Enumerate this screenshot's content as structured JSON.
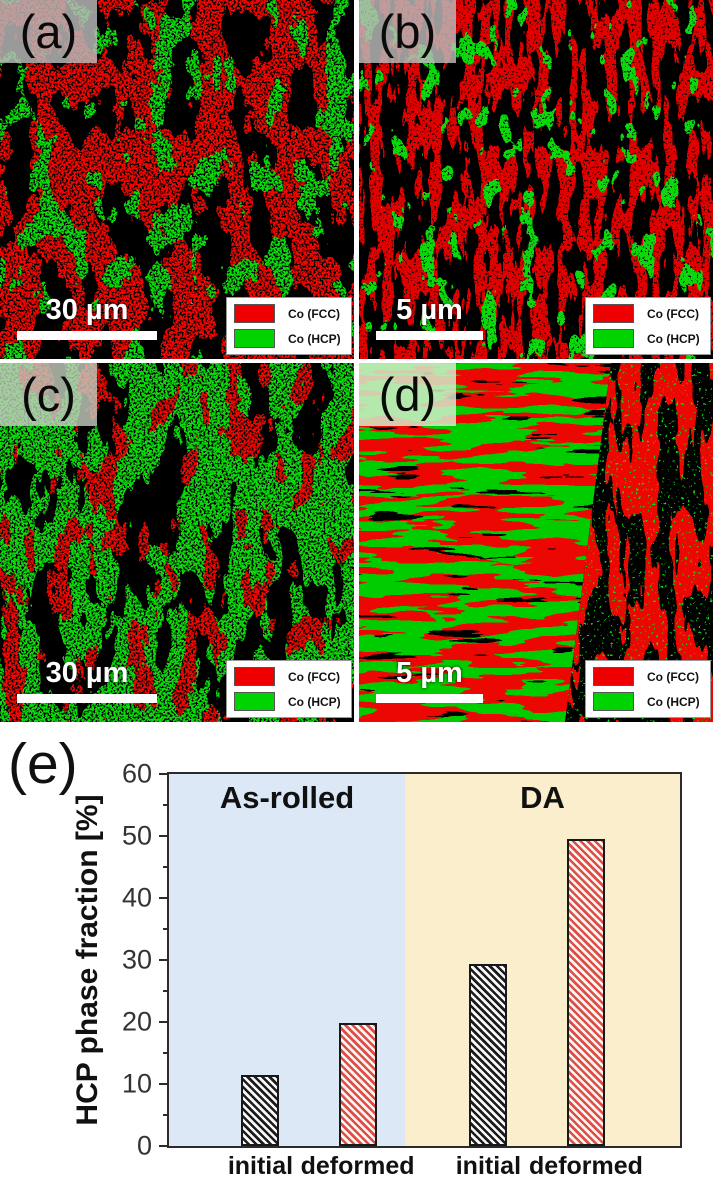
{
  "figure": {
    "panels": [
      {
        "label": "(a)",
        "scale_bar": "30 µm",
        "legend": [
          {
            "label": "Co (FCC)",
            "color": "#ee0000"
          },
          {
            "label": "Co (HCP)",
            "color": "#00d400"
          }
        ]
      },
      {
        "label": "(b)",
        "scale_bar": "5 µm",
        "legend": [
          {
            "label": "Co (FCC)",
            "color": "#ee0000"
          },
          {
            "label": "Co (HCP)",
            "color": "#00d400"
          }
        ]
      },
      {
        "label": "(c)",
        "scale_bar": "30 µm",
        "legend": [
          {
            "label": "Co (FCC)",
            "color": "#ee0000"
          },
          {
            "label": "Co (HCP)",
            "color": "#00d400"
          }
        ]
      },
      {
        "label": "(d)",
        "scale_bar": "5 µm",
        "legend": [
          {
            "label": "Co (FCC)",
            "color": "#ee0000"
          },
          {
            "label": "Co (HCP)",
            "color": "#00d400"
          }
        ]
      }
    ]
  },
  "phase_colors": {
    "fcc": "#ee0000",
    "hcp": "#00d400"
  },
  "chart": {
    "panel_label": "(e)"
  },
  "chart_data": {
    "type": "bar",
    "title": "",
    "xlabel": "",
    "ylabel": "HCP phase fraction [%]",
    "ylim": [
      0,
      60
    ],
    "yticks": [
      0,
      10,
      20,
      30,
      40,
      50,
      60
    ],
    "minor_tick_step": 5,
    "grid": false,
    "legend_position": "none",
    "categories": [
      "initial",
      "deformed",
      "initial",
      "deformed"
    ],
    "values": [
      11.5,
      19.8,
      29.3,
      49.5
    ],
    "groups": [
      {
        "label": "As-rolled",
        "bg": "#dce8f5",
        "categories": [
          "initial",
          "deformed"
        ]
      },
      {
        "label": "DA",
        "bg": "#faeecd",
        "categories": [
          "initial",
          "deformed"
        ]
      }
    ],
    "bar_styles": [
      {
        "hatch": "black"
      },
      {
        "hatch": "red"
      },
      {
        "hatch": "black"
      },
      {
        "hatch": "red"
      }
    ],
    "hatch_colors": {
      "black": "#1c1c1c",
      "red": "#dd4f45"
    }
  }
}
